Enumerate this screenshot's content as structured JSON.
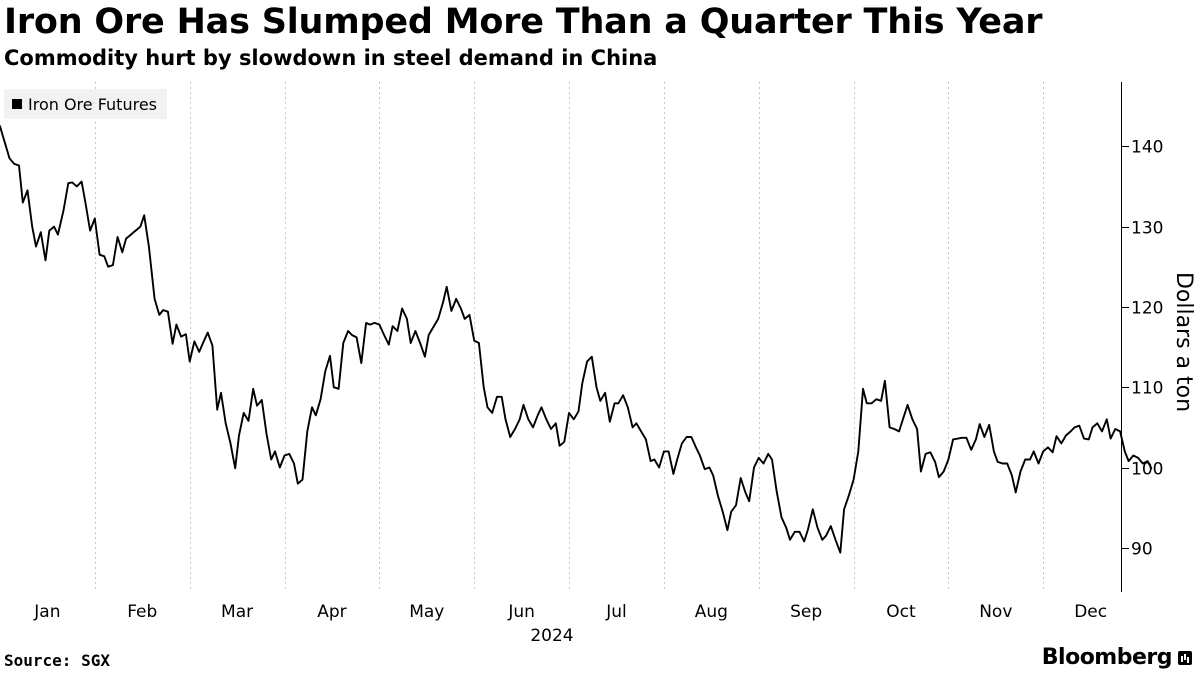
{
  "header": {
    "title": "Iron Ore Has Slumped More Than a Quarter This Year",
    "subtitle": "Commodity hurt by slowdown in steel demand in China"
  },
  "footer": {
    "source": "Source: SGX",
    "brand": "Bloomberg"
  },
  "colors": {
    "line": "#000000",
    "grid": "#c8c8c8",
    "legend_bg": "#f2f2f2"
  },
  "chart_data": {
    "type": "line",
    "title": "Iron Ore Has Slumped More Than a Quarter This Year",
    "subtitle": "Commodity hurt by slowdown in steel demand in China",
    "xlabel": "2024",
    "ylabel": "Dollars a ton",
    "ylim": [
      84.5,
      148
    ],
    "yticks": [
      90,
      100,
      110,
      120,
      130,
      140
    ],
    "xlim": [
      0,
      11.82
    ],
    "xticks": [
      {
        "label": "Jan",
        "pos": 0.5
      },
      {
        "label": "Feb",
        "pos": 1.5
      },
      {
        "label": "Mar",
        "pos": 2.5
      },
      {
        "label": "Apr",
        "pos": 3.5
      },
      {
        "label": "May",
        "pos": 4.5
      },
      {
        "label": "Jun",
        "pos": 5.5
      },
      {
        "label": "Jul",
        "pos": 6.5
      },
      {
        "label": "Aug",
        "pos": 7.5
      },
      {
        "label": "Sep",
        "pos": 8.5
      },
      {
        "label": "Oct",
        "pos": 9.5
      },
      {
        "label": "Nov",
        "pos": 10.5
      },
      {
        "label": "Dec",
        "pos": 11.5
      }
    ],
    "grid": "vertical dotted",
    "legend": "top-left",
    "series": [
      {
        "name": "Iron Ore Futures",
        "points": [
          [
            0.0,
            142.5
          ],
          [
            0.05,
            140.5
          ],
          [
            0.1,
            138.5
          ],
          [
            0.15,
            137.8
          ],
          [
            0.2,
            137.6
          ],
          [
            0.24,
            133.0
          ],
          [
            0.29,
            134.5
          ],
          [
            0.34,
            130.0
          ],
          [
            0.38,
            127.5
          ],
          [
            0.43,
            129.3
          ],
          [
            0.48,
            125.8
          ],
          [
            0.52,
            129.5
          ],
          [
            0.57,
            130.0
          ],
          [
            0.61,
            129.0
          ],
          [
            0.67,
            132.0
          ],
          [
            0.72,
            135.4
          ],
          [
            0.76,
            135.5
          ],
          [
            0.81,
            135.0
          ],
          [
            0.86,
            135.6
          ],
          [
            0.9,
            133.0
          ],
          [
            0.95,
            129.5
          ],
          [
            1.0,
            131.0
          ],
          [
            1.05,
            126.5
          ],
          [
            1.1,
            126.3
          ],
          [
            1.14,
            125.0
          ],
          [
            1.19,
            125.2
          ],
          [
            1.24,
            128.7
          ],
          [
            1.29,
            126.8
          ],
          [
            1.33,
            128.5
          ],
          [
            1.38,
            129.0
          ],
          [
            1.43,
            129.5
          ],
          [
            1.48,
            130.0
          ],
          [
            1.52,
            131.4
          ],
          [
            1.57,
            127.5
          ],
          [
            1.63,
            121.0
          ],
          [
            1.68,
            119.0
          ],
          [
            1.72,
            119.6
          ],
          [
            1.77,
            119.4
          ],
          [
            1.82,
            115.4
          ],
          [
            1.86,
            117.8
          ],
          [
            1.91,
            116.3
          ],
          [
            1.96,
            116.6
          ],
          [
            2.0,
            113.2
          ],
          [
            2.05,
            115.7
          ],
          [
            2.1,
            114.4
          ],
          [
            2.14,
            115.5
          ],
          [
            2.19,
            116.8
          ],
          [
            2.24,
            115.2
          ],
          [
            2.29,
            107.2
          ],
          [
            2.33,
            109.3
          ],
          [
            2.38,
            105.5
          ],
          [
            2.43,
            103.0
          ],
          [
            2.48,
            99.9
          ],
          [
            2.52,
            104.0
          ],
          [
            2.57,
            106.8
          ],
          [
            2.62,
            105.8
          ],
          [
            2.67,
            109.8
          ],
          [
            2.71,
            107.7
          ],
          [
            2.76,
            108.4
          ],
          [
            2.81,
            104.2
          ],
          [
            2.86,
            101.0
          ],
          [
            2.9,
            102.0
          ],
          [
            2.95,
            100.0
          ],
          [
            3.0,
            101.5
          ],
          [
            3.05,
            101.7
          ],
          [
            3.1,
            100.5
          ],
          [
            3.14,
            98.0
          ],
          [
            3.19,
            98.5
          ],
          [
            3.24,
            104.5
          ],
          [
            3.29,
            107.5
          ],
          [
            3.33,
            106.5
          ],
          [
            3.38,
            108.5
          ],
          [
            3.43,
            112.0
          ],
          [
            3.48,
            113.9
          ],
          [
            3.52,
            110.0
          ],
          [
            3.57,
            109.8
          ],
          [
            3.62,
            115.5
          ],
          [
            3.67,
            117.0
          ],
          [
            3.71,
            116.5
          ],
          [
            3.76,
            116.2
          ],
          [
            3.81,
            113.0
          ],
          [
            3.86,
            118.0
          ],
          [
            3.9,
            117.8
          ],
          [
            3.95,
            118.0
          ],
          [
            4.0,
            117.8
          ],
          [
            4.05,
            116.5
          ],
          [
            4.1,
            115.3
          ],
          [
            4.14,
            117.6
          ],
          [
            4.19,
            117.0
          ],
          [
            4.24,
            119.8
          ],
          [
            4.29,
            118.5
          ],
          [
            4.33,
            115.5
          ],
          [
            4.38,
            117.0
          ],
          [
            4.43,
            115.5
          ],
          [
            4.48,
            113.8
          ],
          [
            4.52,
            116.5
          ],
          [
            4.57,
            117.5
          ],
          [
            4.62,
            118.5
          ],
          [
            4.67,
            120.5
          ],
          [
            4.71,
            122.5
          ],
          [
            4.76,
            119.5
          ],
          [
            4.81,
            121.0
          ],
          [
            4.86,
            119.8
          ],
          [
            4.9,
            118.5
          ],
          [
            4.95,
            119.0
          ],
          [
            5.0,
            115.8
          ],
          [
            5.05,
            115.5
          ],
          [
            5.1,
            110.0
          ],
          [
            5.14,
            107.5
          ],
          [
            5.19,
            106.8
          ],
          [
            5.24,
            108.8
          ],
          [
            5.29,
            108.8
          ],
          [
            5.33,
            106.0
          ],
          [
            5.38,
            103.8
          ],
          [
            5.43,
            104.8
          ],
          [
            5.48,
            106.0
          ],
          [
            5.52,
            107.8
          ],
          [
            5.57,
            106.0
          ],
          [
            5.62,
            105.0
          ],
          [
            5.67,
            106.5
          ],
          [
            5.71,
            107.5
          ],
          [
            5.76,
            106.0
          ],
          [
            5.81,
            104.8
          ],
          [
            5.86,
            105.5
          ],
          [
            5.9,
            102.7
          ],
          [
            5.95,
            103.2
          ],
          [
            6.0,
            106.8
          ],
          [
            6.05,
            106.0
          ],
          [
            6.1,
            107.0
          ],
          [
            6.14,
            110.5
          ],
          [
            6.19,
            113.2
          ],
          [
            6.24,
            113.8
          ],
          [
            6.29,
            110.0
          ],
          [
            6.33,
            108.3
          ],
          [
            6.38,
            109.3
          ],
          [
            6.43,
            105.7
          ],
          [
            6.48,
            108.0
          ],
          [
            6.52,
            108.0
          ],
          [
            6.57,
            109.0
          ],
          [
            6.62,
            107.5
          ],
          [
            6.67,
            105.0
          ],
          [
            6.71,
            105.5
          ],
          [
            6.76,
            104.5
          ],
          [
            6.81,
            103.5
          ],
          [
            6.86,
            100.8
          ],
          [
            6.9,
            101.0
          ],
          [
            6.95,
            100.0
          ],
          [
            7.0,
            102.0
          ],
          [
            7.05,
            102.0
          ],
          [
            7.1,
            99.2
          ],
          [
            7.14,
            101.0
          ],
          [
            7.19,
            103.0
          ],
          [
            7.24,
            103.8
          ],
          [
            7.29,
            103.8
          ],
          [
            7.33,
            102.7
          ],
          [
            7.38,
            101.5
          ],
          [
            7.43,
            99.8
          ],
          [
            7.48,
            100.0
          ],
          [
            7.52,
            99.0
          ],
          [
            7.57,
            96.5
          ],
          [
            7.62,
            94.5
          ],
          [
            7.67,
            92.2
          ],
          [
            7.71,
            94.5
          ],
          [
            7.76,
            95.3
          ],
          [
            7.81,
            98.7
          ],
          [
            7.86,
            96.9
          ],
          [
            7.9,
            95.8
          ],
          [
            7.95,
            100.0
          ],
          [
            8.0,
            101.2
          ],
          [
            8.05,
            100.5
          ],
          [
            8.1,
            101.7
          ],
          [
            8.14,
            101.0
          ],
          [
            8.19,
            97.0
          ],
          [
            8.24,
            93.8
          ],
          [
            8.29,
            92.5
          ],
          [
            8.33,
            91.0
          ],
          [
            8.38,
            92.0
          ],
          [
            8.43,
            92.0
          ],
          [
            8.48,
            90.8
          ],
          [
            8.52,
            92.3
          ],
          [
            8.57,
            94.8
          ],
          [
            8.62,
            92.5
          ],
          [
            8.67,
            91.0
          ],
          [
            8.71,
            91.5
          ],
          [
            8.76,
            92.7
          ],
          [
            8.81,
            91.0
          ],
          [
            8.86,
            89.4
          ],
          [
            8.9,
            94.8
          ],
          [
            8.95,
            96.5
          ],
          [
            9.0,
            98.5
          ],
          [
            9.05,
            102.0
          ],
          [
            9.1,
            109.8
          ],
          [
            9.14,
            108.0
          ],
          [
            9.19,
            108.0
          ],
          [
            9.24,
            108.5
          ],
          [
            9.29,
            108.3
          ],
          [
            9.33,
            110.8
          ],
          [
            9.38,
            105.0
          ],
          [
            9.43,
            104.8
          ],
          [
            9.48,
            104.5
          ],
          [
            9.52,
            106.0
          ],
          [
            9.57,
            107.8
          ],
          [
            9.62,
            106.0
          ],
          [
            9.67,
            104.8
          ],
          [
            9.71,
            99.5
          ],
          [
            9.76,
            101.7
          ],
          [
            9.81,
            101.9
          ],
          [
            9.86,
            100.7
          ],
          [
            9.9,
            98.8
          ],
          [
            9.95,
            99.5
          ],
          [
            10.0,
            101.0
          ],
          [
            10.05,
            103.5
          ],
          [
            10.1,
            103.6
          ],
          [
            10.14,
            103.7
          ],
          [
            10.19,
            103.7
          ],
          [
            10.24,
            102.2
          ],
          [
            10.29,
            103.5
          ],
          [
            10.33,
            105.4
          ],
          [
            10.38,
            103.8
          ],
          [
            10.43,
            105.3
          ],
          [
            10.48,
            102.0
          ],
          [
            10.52,
            100.7
          ],
          [
            10.57,
            100.5
          ],
          [
            10.62,
            100.5
          ],
          [
            10.67,
            99.0
          ],
          [
            10.71,
            96.9
          ],
          [
            10.76,
            99.5
          ],
          [
            10.81,
            101.0
          ],
          [
            10.86,
            101.0
          ],
          [
            10.9,
            102.0
          ],
          [
            10.95,
            100.5
          ],
          [
            11.0,
            102.0
          ],
          [
            11.05,
            102.5
          ],
          [
            11.1,
            101.9
          ],
          [
            11.14,
            103.9
          ],
          [
            11.19,
            103.0
          ],
          [
            11.24,
            104.0
          ],
          [
            11.29,
            104.5
          ],
          [
            11.33,
            105.0
          ],
          [
            11.38,
            105.2
          ],
          [
            11.43,
            103.6
          ],
          [
            11.48,
            103.5
          ],
          [
            11.52,
            105.0
          ],
          [
            11.57,
            105.5
          ],
          [
            11.62,
            104.5
          ],
          [
            11.67,
            106.0
          ],
          [
            11.71,
            103.6
          ],
          [
            11.76,
            104.8
          ],
          [
            11.81,
            104.5
          ],
          [
            11.86,
            102.0
          ],
          [
            11.9,
            100.8
          ],
          [
            11.95,
            101.5
          ],
          [
            12.0,
            101.2
          ],
          [
            12.05,
            100.5
          ],
          [
            12.1,
            100.8
          ],
          [
            12.14,
            99.9
          ]
        ]
      }
    ]
  }
}
